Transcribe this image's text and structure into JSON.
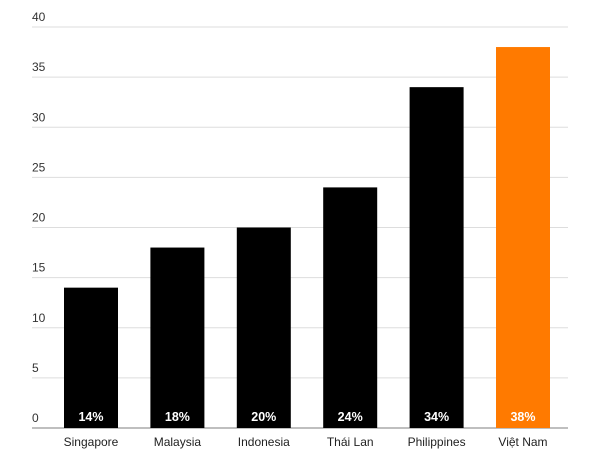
{
  "chart_data": {
    "type": "bar",
    "title": "",
    "xlabel": "",
    "ylabel": "",
    "ylim": [
      0,
      40
    ],
    "yticks": [
      "0",
      "5",
      "10",
      "15",
      "20",
      "25",
      "30",
      "35",
      "40"
    ],
    "grid": true,
    "categories": [
      "Singapore",
      "Malaysia",
      "Indonesia",
      "Thái Lan",
      "Philippines",
      "Việt Nam"
    ],
    "values": [
      14,
      18,
      20,
      24,
      34,
      38
    ],
    "data_labels": [
      "14%",
      "18%",
      "20%",
      "24%",
      "34%",
      "38%"
    ],
    "colors": [
      "#000000",
      "#000000",
      "#000000",
      "#000000",
      "#000000",
      "#ff7a00"
    ],
    "grid_color": "#dddddd",
    "baseline_color": "#999999"
  }
}
